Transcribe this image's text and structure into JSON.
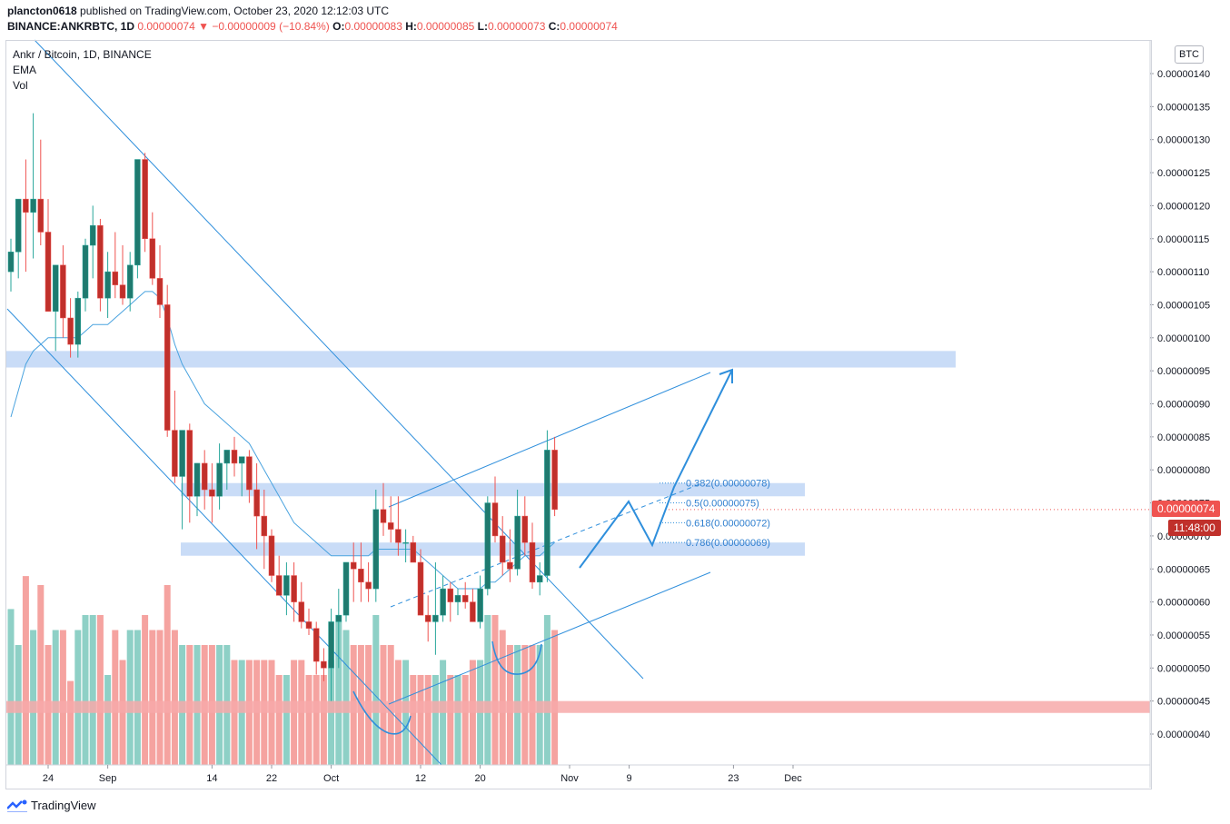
{
  "header": {
    "publisher": "plancton0618",
    "published_text": "published on TradingView.com, October 23, 2020 12:12:03 UTC",
    "symbol": "BINANCE:ANKRBTC, 1D",
    "price": "0.00000074",
    "change_arrow": "▼",
    "change": "−0.00000009 (−10.84%)",
    "o_label": "O:",
    "o_value": "0.00000083",
    "h_label": "H:",
    "h_value": "0.00000085",
    "l_label": "L:",
    "l_value": "0.00000073",
    "c_label": "C:",
    "c_value": "0.00000074"
  },
  "legend": {
    "title": "Ankr / Bitcoin, 1D, BINANCE",
    "indicator1": "EMA",
    "indicator2": "Vol"
  },
  "currency_label": "BTC",
  "last_price_badge": "0.00000074",
  "countdown_badge": "11:48:00",
  "footer_brand": "TradingView",
  "colors": {
    "up": "#26a69a",
    "down": "#ef5350",
    "up_body": "#1f7a6f",
    "down_body": "#c0302b",
    "vol_up": "#8ed0c6",
    "vol_down": "#f5a3a0",
    "ema": "#4aa3df",
    "zone": "#bcd3f5",
    "red_zone": "#f7a9a9",
    "drawing": "#2f8fdc"
  },
  "chart_data": {
    "type": "candlestick",
    "title": "Ankr / Bitcoin, 1D, BINANCE",
    "ylim": [
      3.5e-07,
      1.43e-06
    ],
    "y_ticks": [
      "0.00000140",
      "0.00000135",
      "0.00000130",
      "0.00000125",
      "0.00000120",
      "0.00000115",
      "0.00000110",
      "0.00000105",
      "0.00000100",
      "0.00000095",
      "0.00000090",
      "0.00000085",
      "0.00000080",
      "0.00000075",
      "0.00000070",
      "0.00000065",
      "0.00000060",
      "0.00000055",
      "0.00000050",
      "0.00000045",
      "0.00000040"
    ],
    "x_ticks": [
      "24",
      "Sep",
      "14",
      "22",
      "Oct",
      "12",
      "20",
      "Nov",
      "9",
      "23",
      "Dec"
    ],
    "x_tick_days": [
      23,
      31,
      45,
      53,
      61,
      73,
      81,
      93,
      101,
      115,
      123
    ],
    "start_date": "2020-08-18",
    "ohlcv": [
      [
        110,
        115,
        107,
        113,
        52
      ],
      [
        113,
        118,
        109,
        121,
        40
      ],
      [
        121,
        127,
        110,
        119,
        63
      ],
      [
        119,
        134,
        112,
        121,
        45
      ],
      [
        121,
        130,
        114,
        116,
        60
      ],
      [
        116,
        121,
        104,
        104,
        40
      ],
      [
        104,
        111,
        98,
        111,
        45
      ],
      [
        111,
        114,
        100,
        103,
        45
      ],
      [
        103,
        106,
        97,
        99,
        28
      ],
      [
        99,
        107,
        97,
        106,
        45
      ],
      [
        106,
        115,
        104,
        114,
        50
      ],
      [
        114,
        120,
        109,
        117,
        50
      ],
      [
        117,
        118,
        104,
        106,
        50
      ],
      [
        106,
        113,
        103,
        110,
        30
      ],
      [
        110,
        116,
        106,
        108,
        45
      ],
      [
        108,
        114,
        105,
        106,
        35
      ],
      [
        106,
        113,
        104,
        111,
        45
      ],
      [
        111,
        122,
        109,
        127,
        45
      ],
      [
        127,
        128,
        113,
        115,
        50
      ],
      [
        115,
        119,
        108,
        109,
        45
      ],
      [
        109,
        114,
        103,
        105,
        45
      ],
      [
        105,
        108,
        85,
        86,
        60
      ],
      [
        86,
        92,
        78,
        79,
        45
      ],
      [
        79,
        86,
        71,
        86,
        40
      ],
      [
        86,
        87,
        72,
        76,
        40
      ],
      [
        76,
        81,
        73,
        81,
        40
      ],
      [
        81,
        83,
        74,
        77,
        40
      ],
      [
        77,
        81,
        72,
        76,
        40
      ],
      [
        76,
        84,
        74,
        81,
        40
      ],
      [
        81,
        82,
        77,
        83,
        40
      ],
      [
        83,
        85,
        79,
        81,
        35
      ],
      [
        81,
        82,
        76,
        82,
        35
      ],
      [
        82,
        83,
        75,
        77,
        35
      ],
      [
        77,
        81,
        68,
        73,
        35
      ],
      [
        73,
        77,
        65,
        70,
        35
      ],
      [
        70,
        71,
        63,
        64,
        35
      ],
      [
        64,
        67,
        61,
        61,
        30
      ],
      [
        61,
        66,
        58,
        64,
        30
      ],
      [
        64,
        66,
        57,
        60,
        35
      ],
      [
        60,
        63,
        56,
        57,
        35
      ],
      [
        57,
        59,
        55,
        56,
        30
      ],
      [
        56,
        57,
        49,
        51,
        30
      ],
      [
        51,
        53,
        48,
        50,
        30
      ],
      [
        50,
        59,
        45,
        57,
        35
      ],
      [
        57,
        62,
        50,
        58,
        50
      ],
      [
        58,
        66,
        57,
        66,
        45
      ],
      [
        66,
        69,
        60,
        65,
        40
      ],
      [
        65,
        69,
        60,
        63,
        40
      ],
      [
        63,
        66,
        60,
        62,
        40
      ],
      [
        62,
        77,
        60,
        74,
        50
      ],
      [
        74,
        78,
        70,
        72,
        40
      ],
      [
        72,
        76,
        69,
        71,
        40
      ],
      [
        71,
        76,
        67,
        69,
        35
      ],
      [
        69,
        71,
        66,
        69,
        35
      ],
      [
        69,
        70,
        66,
        66,
        30
      ],
      [
        66,
        68,
        58,
        58,
        30
      ],
      [
        58,
        61,
        54,
        57,
        30
      ],
      [
        57,
        66,
        52,
        58,
        30
      ],
      [
        58,
        64,
        57,
        62,
        35
      ],
      [
        62,
        63,
        57,
        60,
        30
      ],
      [
        60,
        62,
        58,
        61,
        30
      ],
      [
        61,
        63,
        59,
        60,
        30
      ],
      [
        60,
        62,
        57,
        57,
        35
      ],
      [
        57,
        64,
        56,
        62,
        35
      ],
      [
        62,
        76,
        61,
        75,
        50
      ],
      [
        75,
        79,
        69,
        70,
        50
      ],
      [
        70,
        73,
        64,
        66,
        45
      ],
      [
        66,
        71,
        63,
        65,
        40
      ],
      [
        65,
        77,
        64,
        73,
        40
      ],
      [
        73,
        76,
        67,
        69,
        40
      ],
      [
        69,
        72,
        62,
        63,
        40
      ],
      [
        63,
        66,
        61,
        64,
        40
      ],
      [
        64,
        86,
        63,
        83,
        50
      ],
      [
        83,
        85,
        73,
        74,
        45
      ]
    ],
    "ema": [
      88,
      92,
      96,
      98,
      99,
      100,
      100,
      100,
      100,
      100,
      101,
      102,
      102,
      102,
      103,
      104,
      105,
      106,
      107,
      107,
      106,
      103,
      99,
      96,
      94,
      92,
      90,
      89,
      88,
      87,
      86,
      85,
      84,
      82,
      80,
      78,
      76,
      74,
      72,
      71,
      70,
      69,
      68,
      67,
      67,
      67,
      67,
      67,
      67,
      68,
      68,
      68,
      68,
      68,
      68,
      67,
      66,
      65,
      64,
      63,
      62,
      62,
      62,
      62,
      63,
      63,
      64,
      65,
      66,
      67,
      67,
      67,
      68,
      69
    ],
    "annotations": [
      {
        "text": "0.382(0.00000078)",
        "price": 78
      },
      {
        "text": "0.5(0.00000075)",
        "price": 75
      },
      {
        "text": "0.618(0.00000072)",
        "price": 72
      },
      {
        "text": "0.786(0.00000069)",
        "price": 69
      }
    ]
  }
}
